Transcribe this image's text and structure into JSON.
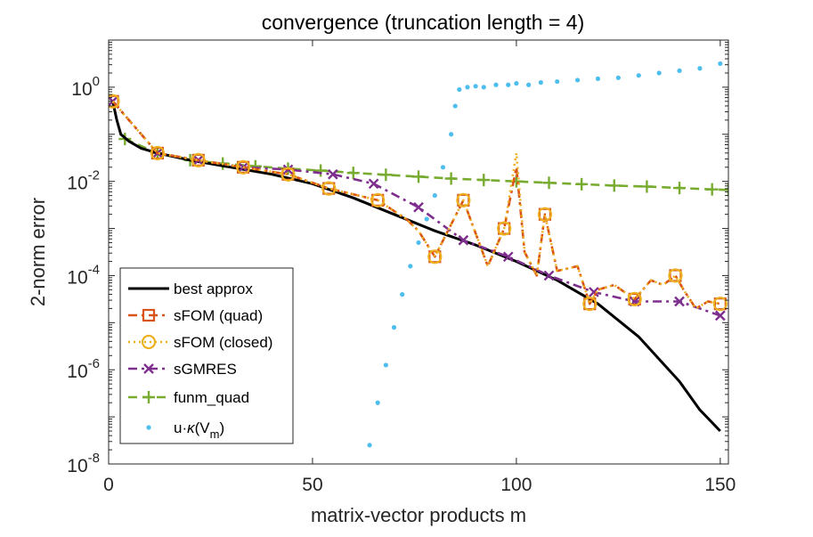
{
  "chart_data": {
    "type": "line",
    "title": "convergence (truncation length = 4)",
    "xlabel": "matrix-vector products m",
    "ylabel": "2-norm error",
    "xlim": [
      0,
      152
    ],
    "ylim_log10": [
      -8,
      1
    ],
    "xticks": [
      {
        "value": 0,
        "label": "0"
      },
      {
        "value": 50,
        "label": "50"
      },
      {
        "value": 100,
        "label": "100"
      },
      {
        "value": 150,
        "label": "150"
      }
    ],
    "yticks": [
      {
        "exp": 0,
        "base": "10",
        "sup": "0"
      },
      {
        "exp": -2,
        "base": "10",
        "sup": "-2"
      },
      {
        "exp": -4,
        "base": "10",
        "sup": "-4"
      },
      {
        "exp": -6,
        "base": "10",
        "sup": "-6"
      },
      {
        "exp": -8,
        "base": "10",
        "sup": "-8"
      }
    ],
    "grid": false,
    "legend_position": "bottom-left",
    "series": [
      {
        "name": "best approx",
        "style": "solid",
        "color": "#000000",
        "marker": "none",
        "x": [
          1,
          2,
          3,
          5,
          8,
          12,
          20,
          30,
          40,
          50,
          60,
          70,
          80,
          90,
          100,
          110,
          120,
          130,
          140,
          145,
          150
        ],
        "log10y": [
          -0.3,
          -0.7,
          -1.0,
          -1.15,
          -1.3,
          -1.4,
          -1.55,
          -1.7,
          -1.85,
          -2.05,
          -2.35,
          -2.7,
          -3.05,
          -3.35,
          -3.7,
          -4.1,
          -4.6,
          -5.3,
          -6.25,
          -6.85,
          -7.3
        ]
      },
      {
        "name": "sFOM (quad)",
        "style": "dashdot",
        "color": "#d95319",
        "marker": "square",
        "x": [
          1,
          12,
          22,
          33,
          44,
          54,
          66,
          73,
          76,
          80,
          87,
          93,
          97,
          100,
          102,
          105,
          107,
          110,
          115,
          118,
          120,
          124,
          129,
          133,
          136,
          139,
          141,
          144,
          147,
          150
        ],
        "log10y": [
          -0.3,
          -1.4,
          -1.55,
          -1.7,
          -1.85,
          -2.15,
          -2.4,
          -2.8,
          -3.05,
          -3.6,
          -2.4,
          -3.8,
          -3.0,
          -1.7,
          -3.5,
          -4.0,
          -2.7,
          -3.9,
          -3.8,
          -4.6,
          -4.3,
          -4.2,
          -4.5,
          -4.1,
          -4.2,
          -4.0,
          -4.3,
          -4.7,
          -4.55,
          -4.6
        ]
      },
      {
        "name": "sFOM (closed)",
        "style": "dotted",
        "color": "#edb120",
        "marker": "circle",
        "x": [
          1,
          12,
          22,
          33,
          44,
          54,
          66,
          73,
          76,
          80,
          87,
          93,
          97,
          100,
          102,
          105,
          107,
          110,
          115,
          118,
          120,
          124,
          129,
          133,
          136,
          139,
          141,
          144,
          147,
          150
        ],
        "log10y": [
          -0.3,
          -1.4,
          -1.55,
          -1.7,
          -1.85,
          -2.15,
          -2.4,
          -2.8,
          -3.05,
          -3.6,
          -2.4,
          -3.8,
          -3.0,
          -1.4,
          -3.5,
          -4.0,
          -2.7,
          -3.9,
          -3.8,
          -4.6,
          -4.3,
          -4.2,
          -4.5,
          -4.1,
          -4.2,
          -4.0,
          -4.3,
          -4.7,
          -4.55,
          -4.6
        ]
      },
      {
        "name": "sGMRES",
        "style": "dashdot",
        "color": "#7e2f8e",
        "marker": "cross",
        "x": [
          1,
          12,
          22,
          33,
          44,
          55,
          65,
          76,
          87,
          98,
          108,
          119,
          129,
          140,
          150
        ],
        "log10y": [
          -0.3,
          -1.4,
          -1.55,
          -1.7,
          -1.75,
          -1.85,
          -2.05,
          -2.55,
          -3.25,
          -3.6,
          -4.0,
          -4.35,
          -4.55,
          -4.55,
          -4.85
        ]
      },
      {
        "name": "funm_quad",
        "style": "dashed",
        "color": "#77ac30",
        "marker": "plus",
        "x": [
          4,
          12,
          20,
          28,
          36,
          44,
          52,
          60,
          68,
          76,
          84,
          92,
          100,
          108,
          116,
          124,
          132,
          140,
          148,
          152
        ],
        "log10y": [
          -1.1,
          -1.4,
          -1.55,
          -1.62,
          -1.68,
          -1.73,
          -1.77,
          -1.82,
          -1.86,
          -1.9,
          -1.94,
          -1.97,
          -2.0,
          -2.03,
          -2.06,
          -2.09,
          -2.11,
          -2.14,
          -2.17,
          -2.18
        ]
      },
      {
        "name": "u·κ(V_m)",
        "style": "none",
        "color": "#4dbeee",
        "marker": "point",
        "x": [
          64,
          66,
          68,
          70,
          72,
          74,
          76,
          78,
          80,
          82,
          84,
          85,
          86,
          88,
          90,
          92,
          95,
          98,
          100,
          103,
          106,
          110,
          115,
          120,
          125,
          130,
          135,
          140,
          145,
          150
        ],
        "log10y": [
          -7.6,
          -6.7,
          -5.9,
          -5.1,
          -4.4,
          -3.8,
          -3.3,
          -2.8,
          -2.3,
          -1.7,
          -1.0,
          -0.4,
          -0.05,
          0.0,
          0.02,
          0.0,
          0.05,
          0.05,
          0.08,
          0.05,
          0.1,
          0.12,
          0.15,
          0.18,
          0.2,
          0.25,
          0.3,
          0.35,
          0.4,
          0.5
        ]
      }
    ]
  },
  "legend": {
    "entries": [
      "best approx",
      "sFOM (quad)",
      "sFOM (closed)",
      "sGMRES",
      "funm_quad"
    ],
    "last_entry": {
      "prefix": "u·",
      "kappa": "κ",
      "open": "(V",
      "sub": "m",
      "close": ")"
    }
  }
}
